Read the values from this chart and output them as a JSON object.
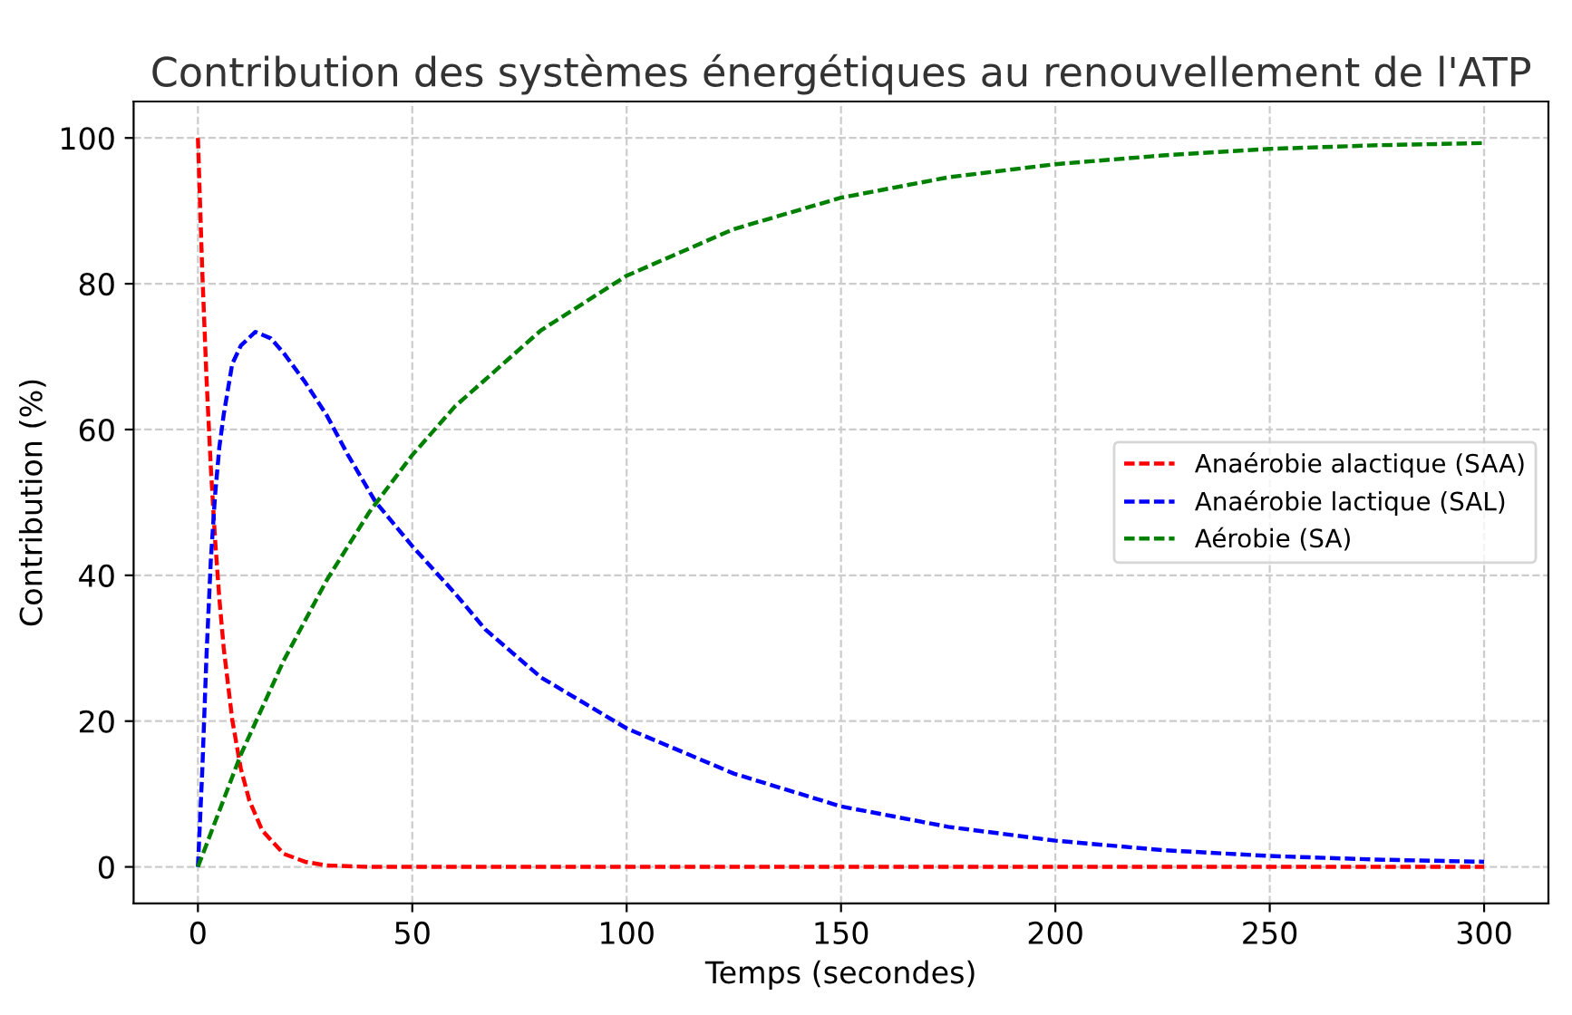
{
  "chart_data": {
    "type": "line",
    "title": "Contribution des systèmes énergétiques au renouvellement de l'ATP",
    "xlabel": "Temps (secondes)",
    "ylabel": "Contribution (%)",
    "series": [
      {
        "name": "Anaérobie alactique (SAA)",
        "color": "#ff0000",
        "x": [
          0,
          1,
          2,
          3,
          4,
          5,
          6,
          8,
          10,
          12,
          15,
          20,
          25,
          30,
          40,
          50,
          100,
          150,
          200,
          250,
          300
        ],
        "values": [
          100,
          81.9,
          67,
          54.9,
          44.9,
          36.8,
          30.1,
          20.2,
          13.5,
          9.1,
          5,
          1.8,
          0.7,
          0.2,
          0,
          0,
          0,
          0,
          0,
          0,
          0
        ]
      },
      {
        "name": "Anaérobie lactique (SAL)",
        "color": "#0000ff",
        "x": [
          0,
          1,
          2,
          3,
          4,
          5,
          6,
          8,
          10,
          13.4,
          17,
          20,
          25,
          30,
          35,
          41.4,
          50,
          60,
          67,
          80,
          100,
          125,
          150,
          175,
          200,
          225,
          250,
          275,
          300
        ],
        "values": [
          0,
          13,
          29,
          42,
          51,
          57.6,
          62,
          69,
          71.5,
          73.4,
          72.5,
          70.5,
          66.5,
          62,
          56.5,
          50.1,
          44,
          37.5,
          32.6,
          26,
          19,
          12.8,
          8.3,
          5.5,
          3.6,
          2.3,
          1.5,
          1,
          0.7
        ]
      },
      {
        "name": "Aérobie (SA)",
        "color": "#008000",
        "x": [
          0,
          10,
          20,
          30,
          40,
          50,
          60,
          80,
          100,
          125,
          150,
          175,
          200,
          225,
          250,
          275,
          300
        ],
        "values": [
          0,
          15.4,
          28.3,
          39.3,
          48.7,
          56.5,
          63.2,
          73.6,
          81.1,
          87.5,
          91.8,
          94.6,
          96.4,
          97.6,
          98.5,
          99,
          99.3
        ]
      }
    ],
    "xlim": [
      -15,
      315
    ],
    "ylim": [
      -5,
      105
    ],
    "xticks": [
      0,
      50,
      100,
      150,
      200,
      250,
      300
    ],
    "yticks": [
      0,
      20,
      40,
      60,
      80,
      100
    ],
    "grid": true,
    "legend": "right",
    "line_style": "dashed",
    "marker": "none"
  }
}
